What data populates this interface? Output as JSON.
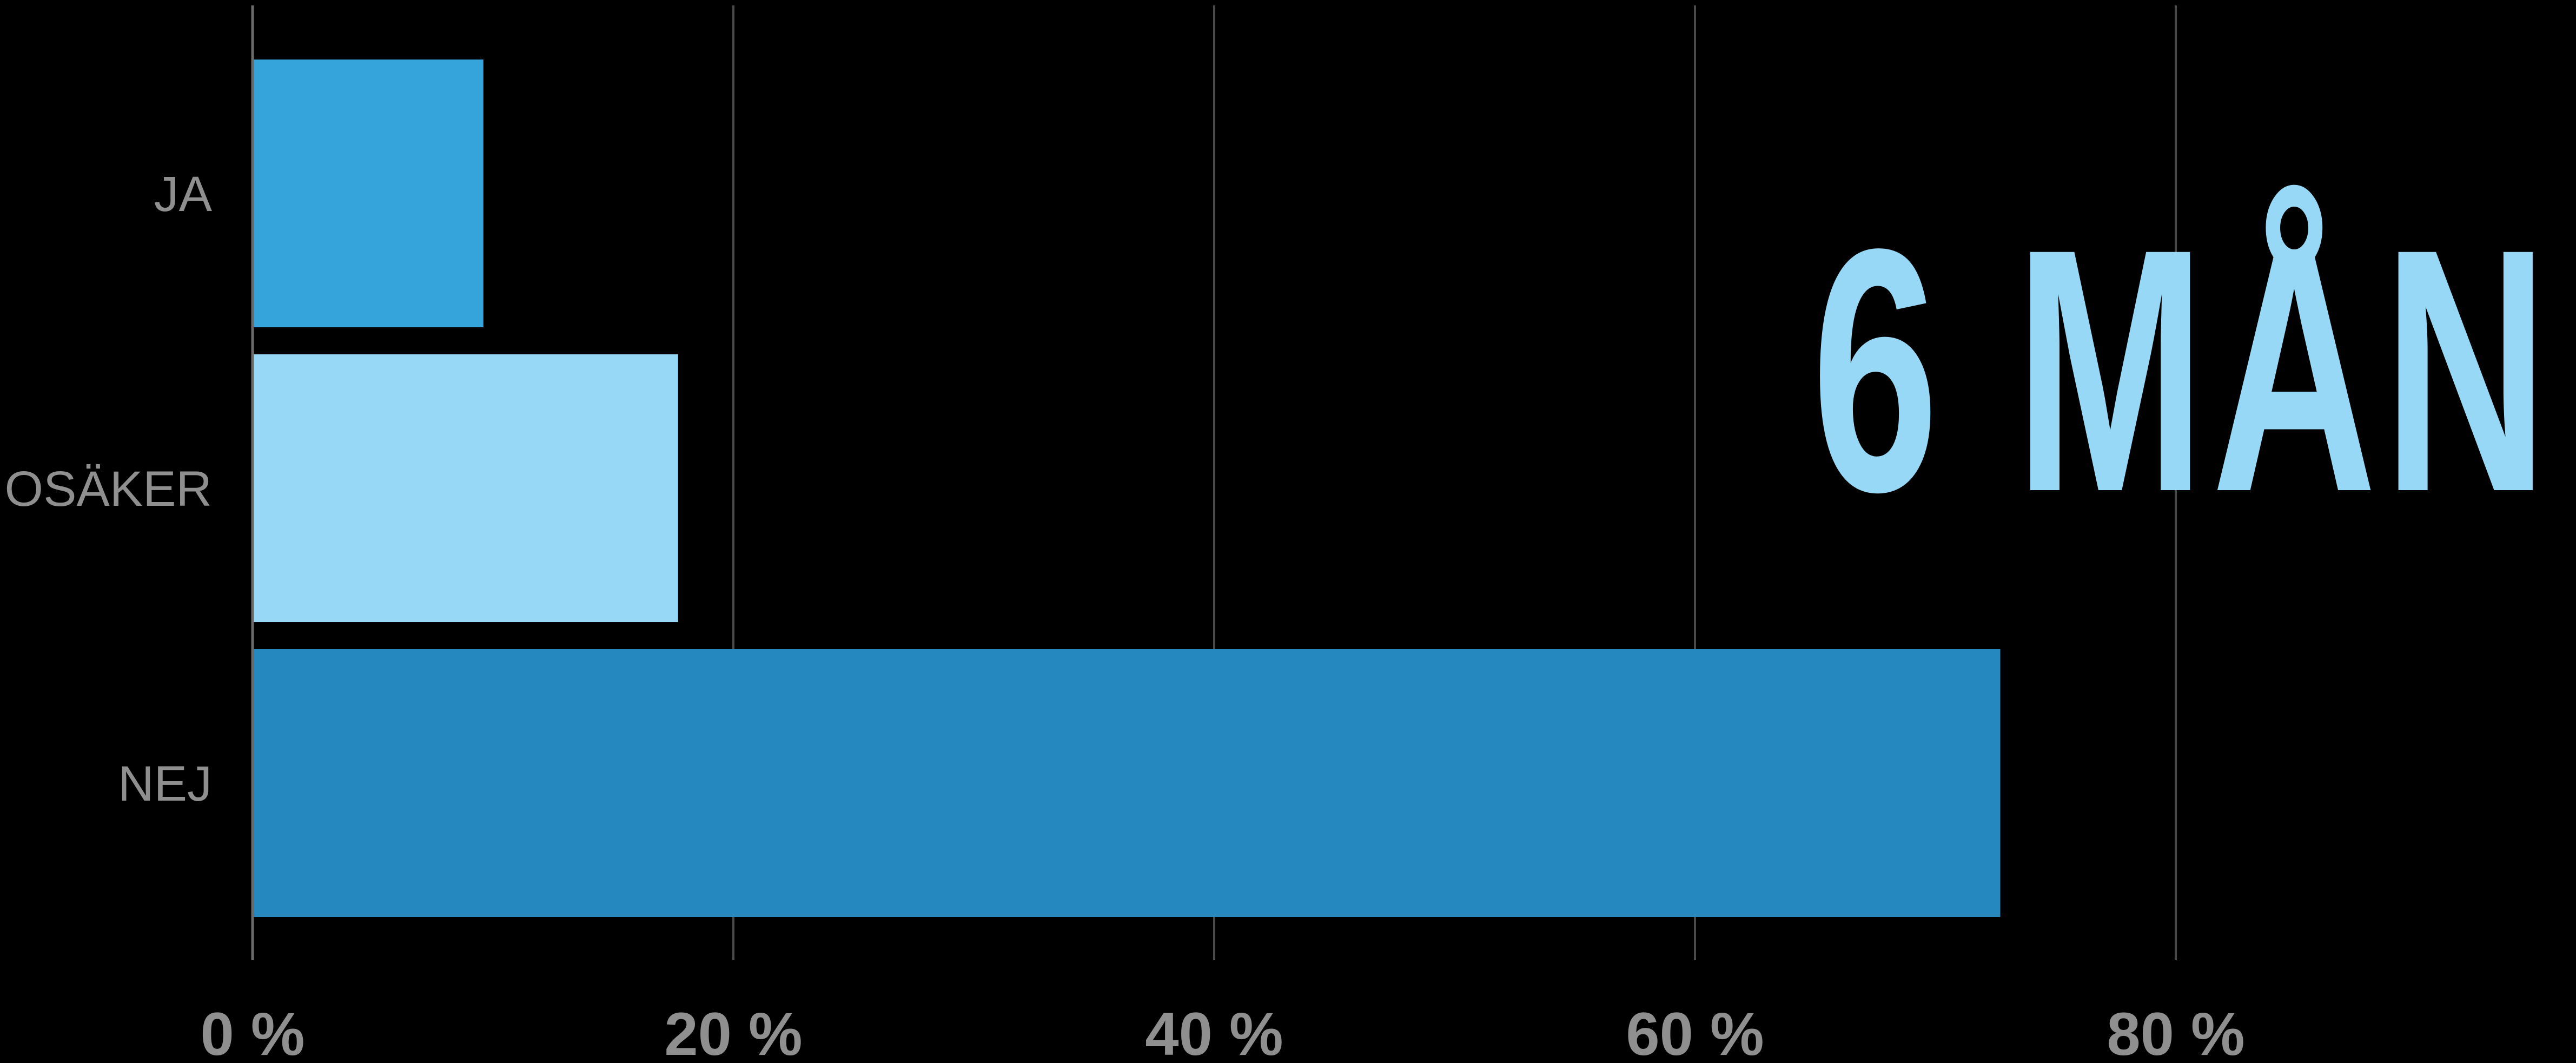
{
  "chart_data": {
    "type": "bar",
    "orientation": "horizontal",
    "categories": [
      "JA",
      "OSÄKER",
      "NEJ"
    ],
    "values": [
      9.6,
      17.7,
      72.7
    ],
    "colors": [
      "#35a4da",
      "#96d8f5",
      "#2589c0"
    ],
    "xlim": [
      0,
      95
    ],
    "xticks": [
      0,
      20,
      40,
      60,
      80
    ],
    "xtick_labels": [
      "0 %",
      "20 %",
      "40 %",
      "60 %",
      "80 %"
    ],
    "grid": true,
    "title": "6 MÅN",
    "title_color": "#96d8f5",
    "background": "#000000",
    "label_color": "#8f8f8f",
    "legend": "none"
  }
}
